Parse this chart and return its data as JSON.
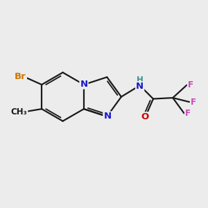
{
  "bg_color": "#ececec",
  "bond_color": "#1a1a1a",
  "bond_width": 1.6,
  "atom_colors": {
    "N": "#1919cc",
    "Br": "#cc7700",
    "O": "#cc0000",
    "F": "#cc44bb",
    "H": "#3a9090",
    "C": "#1a1a1a"
  },
  "font_size": 9.5,
  "font_size_small": 8.5
}
